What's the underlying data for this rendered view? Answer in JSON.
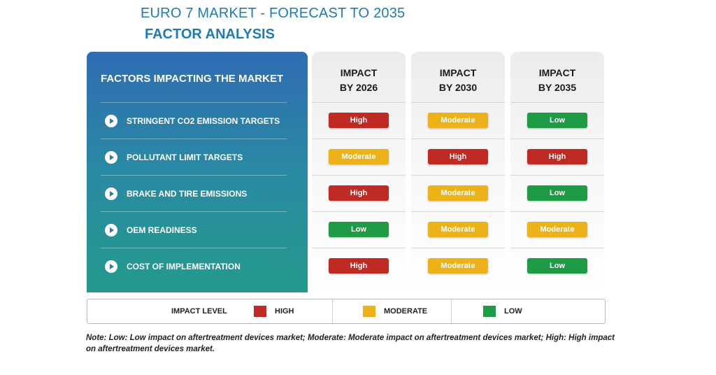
{
  "title": "EURO 7 MARKET - FORECAST TO 2035",
  "subtitle": "FACTOR ANALYSIS",
  "factors_header": "FACTORS IMPACTING THE MARKET",
  "factors": [
    "STRINGENT CO2 EMISSION TARGETS",
    "POLLUTANT LIMIT TARGETS",
    "BRAKE AND TIRE EMISSIONS",
    "OEM READINESS",
    "COST OF IMPLEMENTATION"
  ],
  "columns": [
    {
      "head_line1": "IMPACT",
      "head_line2": "BY 2026",
      "levels": [
        "High",
        "Moderate",
        "High",
        "Low",
        "High"
      ]
    },
    {
      "head_line1": "IMPACT",
      "head_line2": "BY 2030",
      "levels": [
        "Moderate",
        "High",
        "Moderate",
        "Moderate",
        "Moderate"
      ]
    },
    {
      "head_line1": "IMPACT",
      "head_line2": "BY 2035",
      "levels": [
        "Low",
        "High",
        "Low",
        "Moderate",
        "Low"
      ]
    }
  ],
  "legend": {
    "title": "IMPACT LEVEL",
    "high": "HIGH",
    "moderate": "MODERATE",
    "low": "LOW"
  },
  "colors": {
    "high": "#bf2a24",
    "moderate": "#ecb21a",
    "low": "#1f9a45"
  },
  "note": "Note: Low: Low impact on aftertreatment devices market; Moderate: Moderate impact on aftertreatment devices market; High: High impact on aftertreatment devices market."
}
